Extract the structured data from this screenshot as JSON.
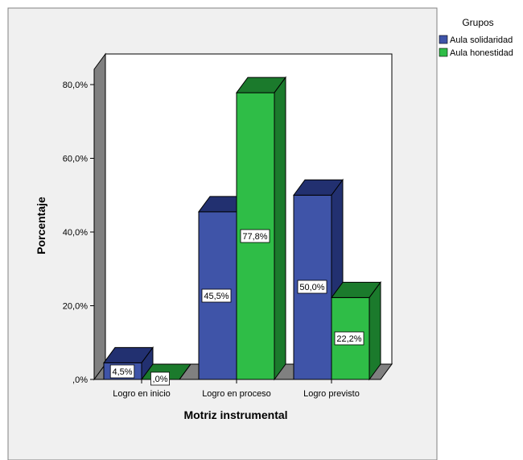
{
  "chart_data": {
    "type": "bar",
    "xlabel": "Motriz instrumental",
    "ylabel": "Porcentaje",
    "categories": [
      "Logro en inicio",
      "Logro en proceso",
      "Logro previsto"
    ],
    "series": [
      {
        "name": "Aula solidaridad",
        "values": [
          4.5,
          45.5,
          50.0
        ],
        "labels": [
          "4,5%",
          "45,5%",
          "50,0%"
        ],
        "color": "#3f54a8"
      },
      {
        "name": "Aula honestidad",
        "values": [
          0.0,
          77.8,
          22.2
        ],
        "labels": [
          ",0%",
          "77,8%",
          "22,2%"
        ],
        "color": "#2fbd47"
      }
    ],
    "ylim": [
      0,
      80
    ],
    "yticks": [
      ",0%",
      "20,0%",
      "40,0%",
      "60,0%",
      "80,0%"
    ],
    "legend": {
      "title": "Grupos",
      "position": "top-right"
    },
    "grid": false
  },
  "colors": {
    "background": "#f0f0f0",
    "plot_area": "#ffffff",
    "side_wall": "#808080",
    "solidaridad_front": "#3f54a8",
    "solidaridad_side": "#223070",
    "honestidad_front": "#2fbd47",
    "honestidad_side": "#1b7a2c"
  }
}
